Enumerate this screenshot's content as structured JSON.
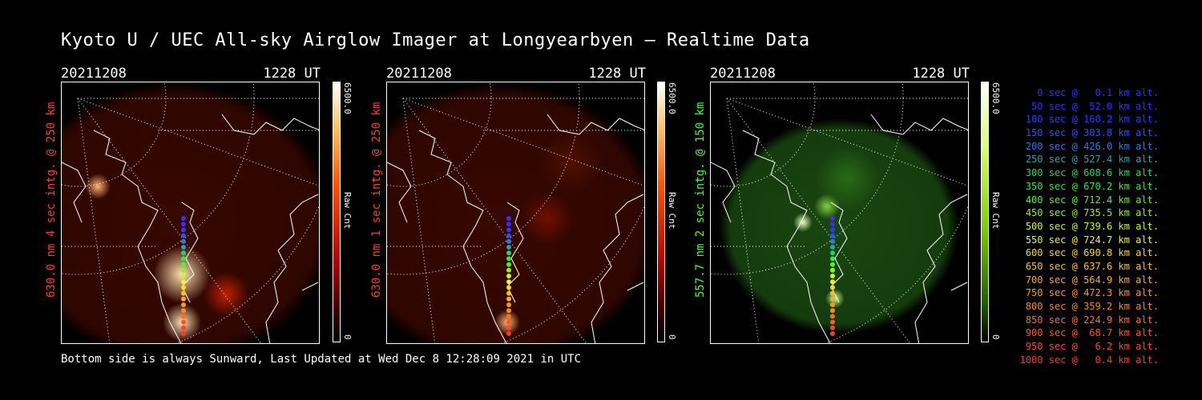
{
  "title": "Kyoto U / UEC All-sky Airglow Imager at Longyearbyen — Realtime Data",
  "footer": "Bottom side is always Sunward, Last Updated at Wed Dec  8 12:28:09 2021 in UTC",
  "panels": [
    {
      "date": "20211208",
      "time": "1228 UT",
      "ylabel": "630.0 nm 4 sec intg. @ 250 km",
      "ylabel_color": "#ff3b2f",
      "cbar_max": "6500.0",
      "cbar_min": "0",
      "cbar_unit": "Raw Cnt",
      "palette": "red"
    },
    {
      "date": "20211208",
      "time": "1228 UT",
      "ylabel": "630.0 nm 1 sec intg. @ 250 km",
      "ylabel_color": "#ff3b2f",
      "cbar_max": "6500.0",
      "cbar_min": "0",
      "cbar_unit": "Raw Cnt",
      "palette": "red"
    },
    {
      "date": "20211208",
      "time": "1228 UT",
      "ylabel": "557.7 nm 2 sec intg. @ 150 km",
      "ylabel_color": "#3cff3c",
      "cbar_max": "6500.0",
      "cbar_min": "0",
      "cbar_unit": "Raw Cnt",
      "palette": "green"
    }
  ],
  "legend": [
    {
      "text": "0 sec @   0.1 km alt.",
      "color": "#3a2cff"
    },
    {
      "text": "50 sec @  52.0 km alt.",
      "color": "#3a2cff"
    },
    {
      "text": "100 sec @ 160.2 km alt.",
      "color": "#2f3aff"
    },
    {
      "text": "150 sec @ 303.8 km alt.",
      "color": "#2a52ff"
    },
    {
      "text": "200 sec @ 426.0 km alt.",
      "color": "#2a7ae0"
    },
    {
      "text": "250 sec @ 527.4 km alt.",
      "color": "#2aa0b0"
    },
    {
      "text": "300 sec @ 608.6 km alt.",
      "color": "#2ad070"
    },
    {
      "text": "350 sec @ 670.2 km alt.",
      "color": "#33e640"
    },
    {
      "text": "400 sec @ 712.4 km alt.",
      "color": "#55f030"
    },
    {
      "text": "450 sec @ 735.5 km alt.",
      "color": "#90f028"
    },
    {
      "text": "500 sec @ 739.6 km alt.",
      "color": "#c8f428"
    },
    {
      "text": "550 sec @ 724.7 km alt.",
      "color": "#f0f028"
    },
    {
      "text": "600 sec @ 690.8 km alt.",
      "color": "#f8d828"
    },
    {
      "text": "650 sec @ 637.6 km alt.",
      "color": "#f8c028"
    },
    {
      "text": "700 sec @ 564.9 km alt.",
      "color": "#f8aa28"
    },
    {
      "text": "750 sec @ 472.3 km alt.",
      "color": "#f89828"
    },
    {
      "text": "800 sec @ 359.2 km alt.",
      "color": "#f88828"
    },
    {
      "text": "850 sec @ 224.9 km alt.",
      "color": "#f87028"
    },
    {
      "text": "900 sec @  68.7 km alt.",
      "color": "#f85a28"
    },
    {
      "text": "950 sec @   6.2 km alt.",
      "color": "#f84a28"
    },
    {
      "text": "1000 sec @   0.4 km alt.",
      "color": "#f83a28"
    }
  ]
}
